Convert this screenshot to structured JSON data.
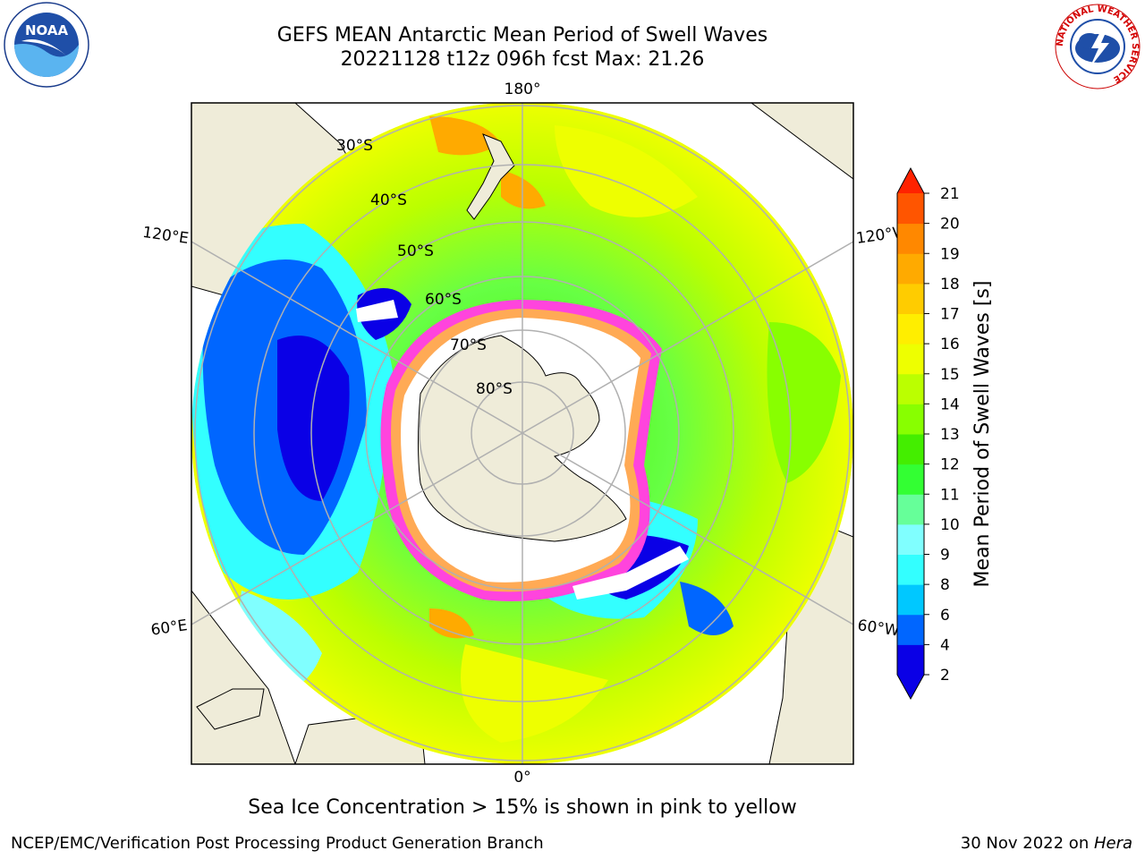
{
  "header": {
    "title_line1": "GEFS MEAN Antarctic Mean Period of Swell Waves",
    "title_line2": "20221128 t12z 096h fcst   Max: 21.26"
  },
  "map": {
    "projection": "south-polar-stereographic",
    "longitude_labels": {
      "top": "180°",
      "bottom": "0°",
      "left_upper": "120°E",
      "left_lower": "60°E",
      "right_upper": "120°W",
      "right_lower": "60°W"
    },
    "latitude_labels": [
      "30°S",
      "40°S",
      "50°S",
      "60°S",
      "70°S",
      "80°S"
    ],
    "land_color": "#efecd9",
    "ice_colors": [
      "#ff44dd",
      "#ffaa55",
      "#ffffff"
    ]
  },
  "colorbar": {
    "label": "Mean Period of Swell Waves [s]",
    "ticks": [
      "2",
      "4",
      "6",
      "8",
      "9",
      "10",
      "11",
      "12",
      "13",
      "14",
      "15",
      "16",
      "17",
      "18",
      "19",
      "20",
      "21"
    ],
    "colors": [
      "#0a00e6",
      "#0066ff",
      "#00c8ff",
      "#33ffff",
      "#80ffff",
      "#66ff99",
      "#33ff33",
      "#44ee00",
      "#88ff00",
      "#bbff00",
      "#eeff00",
      "#ffee00",
      "#ffcc00",
      "#ffaa00",
      "#ff8800",
      "#ff5500",
      "#ff2200"
    ],
    "under_color": "#0a00e6",
    "over_color": "#ff2200"
  },
  "notes": {
    "sea_ice": "Sea Ice Concentration > 15% is shown in pink to yellow"
  },
  "footer": {
    "left": "NCEP/EMC/Verification Post Processing Product Generation Branch",
    "date_prefix": "30 Nov 2022 on ",
    "machine": "Hera"
  },
  "logos": {
    "noaa_text": "NOAA",
    "nws_text": "NATIONAL WEATHER SERVICE"
  }
}
